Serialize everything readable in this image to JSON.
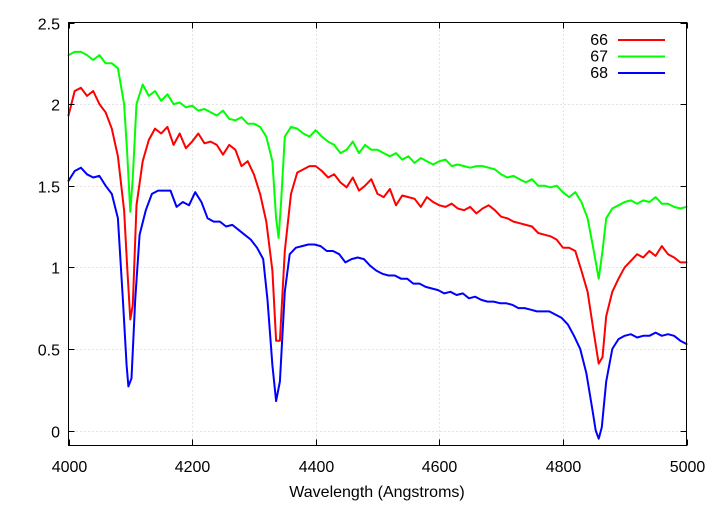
{
  "chart_data": {
    "type": "line",
    "title": "",
    "xlabel": "Wavelength (Angstroms)",
    "ylabel": "",
    "xlim": [
      4000,
      5000
    ],
    "ylim": [
      -0.05,
      2.5
    ],
    "x_ticks": [
      4000,
      4200,
      4400,
      4600,
      4800,
      5000
    ],
    "y_ticks": [
      0,
      0.5,
      1,
      1.5,
      2,
      2.5
    ],
    "x_tick_labels": [
      "4000",
      "4200",
      "4400",
      "4600",
      "4800",
      "5000"
    ],
    "y_tick_labels": [
      "0",
      "0.5",
      "1",
      "1.5",
      "2",
      "2.5"
    ],
    "grid": true,
    "legend_position": "top-right",
    "series": [
      {
        "name": "66",
        "color": "#ff0000",
        "points": [
          [
            4000,
            1.93
          ],
          [
            4010,
            2.08
          ],
          [
            4020,
            2.1
          ],
          [
            4030,
            2.05
          ],
          [
            4040,
            2.08
          ],
          [
            4050,
            2.0
          ],
          [
            4060,
            1.95
          ],
          [
            4070,
            1.85
          ],
          [
            4080,
            1.68
          ],
          [
            4090,
            1.35
          ],
          [
            4095,
            1.0
          ],
          [
            4100,
            0.68
          ],
          [
            4104,
            0.77
          ],
          [
            4110,
            1.38
          ],
          [
            4120,
            1.65
          ],
          [
            4130,
            1.78
          ],
          [
            4140,
            1.85
          ],
          [
            4150,
            1.82
          ],
          [
            4160,
            1.86
          ],
          [
            4170,
            1.75
          ],
          [
            4180,
            1.82
          ],
          [
            4190,
            1.73
          ],
          [
            4200,
            1.77
          ],
          [
            4210,
            1.82
          ],
          [
            4220,
            1.76
          ],
          [
            4230,
            1.77
          ],
          [
            4240,
            1.75
          ],
          [
            4250,
            1.69
          ],
          [
            4260,
            1.75
          ],
          [
            4270,
            1.72
          ],
          [
            4280,
            1.62
          ],
          [
            4290,
            1.65
          ],
          [
            4300,
            1.57
          ],
          [
            4310,
            1.45
          ],
          [
            4320,
            1.28
          ],
          [
            4330,
            0.98
          ],
          [
            4336,
            0.55
          ],
          [
            4342,
            0.55
          ],
          [
            4350,
            1.1
          ],
          [
            4360,
            1.45
          ],
          [
            4370,
            1.58
          ],
          [
            4380,
            1.6
          ],
          [
            4390,
            1.62
          ],
          [
            4400,
            1.62
          ],
          [
            4410,
            1.59
          ],
          [
            4420,
            1.55
          ],
          [
            4430,
            1.57
          ],
          [
            4440,
            1.52
          ],
          [
            4450,
            1.49
          ],
          [
            4460,
            1.55
          ],
          [
            4470,
            1.47
          ],
          [
            4480,
            1.5
          ],
          [
            4490,
            1.54
          ],
          [
            4500,
            1.45
          ],
          [
            4510,
            1.43
          ],
          [
            4520,
            1.48
          ],
          [
            4530,
            1.38
          ],
          [
            4540,
            1.44
          ],
          [
            4550,
            1.43
          ],
          [
            4560,
            1.42
          ],
          [
            4570,
            1.37
          ],
          [
            4580,
            1.43
          ],
          [
            4590,
            1.4
          ],
          [
            4600,
            1.38
          ],
          [
            4610,
            1.37
          ],
          [
            4620,
            1.39
          ],
          [
            4630,
            1.36
          ],
          [
            4640,
            1.35
          ],
          [
            4650,
            1.37
          ],
          [
            4660,
            1.33
          ],
          [
            4670,
            1.36
          ],
          [
            4680,
            1.38
          ],
          [
            4690,
            1.35
          ],
          [
            4700,
            1.31
          ],
          [
            4710,
            1.3
          ],
          [
            4720,
            1.28
          ],
          [
            4730,
            1.27
          ],
          [
            4740,
            1.26
          ],
          [
            4750,
            1.25
          ],
          [
            4760,
            1.21
          ],
          [
            4770,
            1.2
          ],
          [
            4780,
            1.19
          ],
          [
            4790,
            1.17
          ],
          [
            4800,
            1.12
          ],
          [
            4810,
            1.12
          ],
          [
            4820,
            1.1
          ],
          [
            4830,
            0.98
          ],
          [
            4840,
            0.85
          ],
          [
            4850,
            0.6
          ],
          [
            4858,
            0.41
          ],
          [
            4864,
            0.45
          ],
          [
            4870,
            0.7
          ],
          [
            4880,
            0.85
          ],
          [
            4890,
            0.93
          ],
          [
            4900,
            1.0
          ],
          [
            4910,
            1.04
          ],
          [
            4920,
            1.08
          ],
          [
            4930,
            1.06
          ],
          [
            4940,
            1.1
          ],
          [
            4950,
            1.07
          ],
          [
            4960,
            1.13
          ],
          [
            4970,
            1.08
          ],
          [
            4980,
            1.06
          ],
          [
            4990,
            1.03
          ],
          [
            5000,
            1.03
          ]
        ]
      },
      {
        "name": "67",
        "color": "#00ff00",
        "points": [
          [
            4000,
            2.3
          ],
          [
            4010,
            2.32
          ],
          [
            4020,
            2.32
          ],
          [
            4030,
            2.3
          ],
          [
            4040,
            2.27
          ],
          [
            4050,
            2.3
          ],
          [
            4060,
            2.25
          ],
          [
            4070,
            2.25
          ],
          [
            4080,
            2.22
          ],
          [
            4090,
            2.0
          ],
          [
            4095,
            1.7
          ],
          [
            4100,
            1.34
          ],
          [
            4104,
            1.55
          ],
          [
            4110,
            2.0
          ],
          [
            4120,
            2.12
          ],
          [
            4130,
            2.05
          ],
          [
            4140,
            2.08
          ],
          [
            4150,
            2.02
          ],
          [
            4160,
            2.06
          ],
          [
            4170,
            2.0
          ],
          [
            4180,
            2.01
          ],
          [
            4190,
            1.98
          ],
          [
            4200,
            1.99
          ],
          [
            4210,
            1.96
          ],
          [
            4220,
            1.97
          ],
          [
            4230,
            1.95
          ],
          [
            4240,
            1.93
          ],
          [
            4250,
            1.96
          ],
          [
            4260,
            1.91
          ],
          [
            4270,
            1.9
          ],
          [
            4280,
            1.92
          ],
          [
            4290,
            1.88
          ],
          [
            4300,
            1.88
          ],
          [
            4310,
            1.86
          ],
          [
            4320,
            1.8
          ],
          [
            4330,
            1.65
          ],
          [
            4336,
            1.3
          ],
          [
            4340,
            1.18
          ],
          [
            4344,
            1.4
          ],
          [
            4350,
            1.8
          ],
          [
            4360,
            1.86
          ],
          [
            4370,
            1.85
          ],
          [
            4380,
            1.82
          ],
          [
            4390,
            1.8
          ],
          [
            4400,
            1.84
          ],
          [
            4410,
            1.8
          ],
          [
            4420,
            1.77
          ],
          [
            4430,
            1.75
          ],
          [
            4440,
            1.7
          ],
          [
            4450,
            1.72
          ],
          [
            4460,
            1.77
          ],
          [
            4470,
            1.7
          ],
          [
            4480,
            1.75
          ],
          [
            4490,
            1.72
          ],
          [
            4500,
            1.72
          ],
          [
            4510,
            1.7
          ],
          [
            4520,
            1.68
          ],
          [
            4530,
            1.7
          ],
          [
            4540,
            1.66
          ],
          [
            4550,
            1.68
          ],
          [
            4560,
            1.64
          ],
          [
            4570,
            1.67
          ],
          [
            4580,
            1.65
          ],
          [
            4590,
            1.63
          ],
          [
            4600,
            1.65
          ],
          [
            4610,
            1.66
          ],
          [
            4620,
            1.62
          ],
          [
            4630,
            1.63
          ],
          [
            4640,
            1.62
          ],
          [
            4650,
            1.61
          ],
          [
            4660,
            1.62
          ],
          [
            4670,
            1.62
          ],
          [
            4680,
            1.61
          ],
          [
            4690,
            1.6
          ],
          [
            4700,
            1.57
          ],
          [
            4710,
            1.55
          ],
          [
            4720,
            1.56
          ],
          [
            4730,
            1.54
          ],
          [
            4740,
            1.52
          ],
          [
            4750,
            1.54
          ],
          [
            4760,
            1.5
          ],
          [
            4770,
            1.5
          ],
          [
            4780,
            1.49
          ],
          [
            4790,
            1.5
          ],
          [
            4800,
            1.46
          ],
          [
            4810,
            1.43
          ],
          [
            4820,
            1.46
          ],
          [
            4830,
            1.4
          ],
          [
            4840,
            1.3
          ],
          [
            4850,
            1.1
          ],
          [
            4858,
            0.93
          ],
          [
            4864,
            1.1
          ],
          [
            4870,
            1.3
          ],
          [
            4880,
            1.36
          ],
          [
            4890,
            1.38
          ],
          [
            4900,
            1.4
          ],
          [
            4910,
            1.41
          ],
          [
            4920,
            1.39
          ],
          [
            4930,
            1.41
          ],
          [
            4940,
            1.4
          ],
          [
            4950,
            1.43
          ],
          [
            4960,
            1.39
          ],
          [
            4970,
            1.39
          ],
          [
            4980,
            1.37
          ],
          [
            4990,
            1.36
          ],
          [
            5000,
            1.37
          ]
        ]
      },
      {
        "name": "68",
        "color": "#0000ff",
        "points": [
          [
            4000,
            1.53
          ],
          [
            4010,
            1.59
          ],
          [
            4020,
            1.61
          ],
          [
            4030,
            1.57
          ],
          [
            4040,
            1.55
          ],
          [
            4050,
            1.56
          ],
          [
            4060,
            1.5
          ],
          [
            4070,
            1.45
          ],
          [
            4080,
            1.3
          ],
          [
            4088,
            0.8
          ],
          [
            4094,
            0.4
          ],
          [
            4097,
            0.27
          ],
          [
            4102,
            0.32
          ],
          [
            4108,
            0.8
          ],
          [
            4115,
            1.2
          ],
          [
            4125,
            1.35
          ],
          [
            4135,
            1.45
          ],
          [
            4145,
            1.47
          ],
          [
            4155,
            1.47
          ],
          [
            4165,
            1.47
          ],
          [
            4175,
            1.37
          ],
          [
            4185,
            1.4
          ],
          [
            4195,
            1.38
          ],
          [
            4205,
            1.46
          ],
          [
            4215,
            1.4
          ],
          [
            4225,
            1.3
          ],
          [
            4235,
            1.28
          ],
          [
            4245,
            1.28
          ],
          [
            4255,
            1.25
          ],
          [
            4265,
            1.26
          ],
          [
            4275,
            1.23
          ],
          [
            4285,
            1.2
          ],
          [
            4295,
            1.17
          ],
          [
            4305,
            1.12
          ],
          [
            4315,
            1.05
          ],
          [
            4322,
            0.8
          ],
          [
            4330,
            0.4
          ],
          [
            4336,
            0.18
          ],
          [
            4342,
            0.3
          ],
          [
            4350,
            0.85
          ],
          [
            4358,
            1.08
          ],
          [
            4368,
            1.12
          ],
          [
            4378,
            1.13
          ],
          [
            4388,
            1.14
          ],
          [
            4398,
            1.14
          ],
          [
            4408,
            1.13
          ],
          [
            4418,
            1.1
          ],
          [
            4428,
            1.1
          ],
          [
            4438,
            1.08
          ],
          [
            4448,
            1.03
          ],
          [
            4458,
            1.05
          ],
          [
            4468,
            1.06
          ],
          [
            4478,
            1.05
          ],
          [
            4488,
            1.01
          ],
          [
            4498,
            0.98
          ],
          [
            4508,
            0.96
          ],
          [
            4518,
            0.95
          ],
          [
            4528,
            0.95
          ],
          [
            4538,
            0.93
          ],
          [
            4548,
            0.93
          ],
          [
            4558,
            0.9
          ],
          [
            4568,
            0.9
          ],
          [
            4578,
            0.88
          ],
          [
            4588,
            0.87
          ],
          [
            4598,
            0.86
          ],
          [
            4608,
            0.84
          ],
          [
            4618,
            0.85
          ],
          [
            4628,
            0.83
          ],
          [
            4638,
            0.84
          ],
          [
            4648,
            0.81
          ],
          [
            4658,
            0.82
          ],
          [
            4668,
            0.8
          ],
          [
            4678,
            0.79
          ],
          [
            4688,
            0.79
          ],
          [
            4698,
            0.78
          ],
          [
            4708,
            0.78
          ],
          [
            4718,
            0.77
          ],
          [
            4728,
            0.75
          ],
          [
            4738,
            0.75
          ],
          [
            4748,
            0.74
          ],
          [
            4758,
            0.73
          ],
          [
            4768,
            0.73
          ],
          [
            4778,
            0.73
          ],
          [
            4788,
            0.71
          ],
          [
            4798,
            0.69
          ],
          [
            4808,
            0.65
          ],
          [
            4818,
            0.58
          ],
          [
            4828,
            0.5
          ],
          [
            4838,
            0.35
          ],
          [
            4848,
            0.12
          ],
          [
            4853,
            0.0
          ],
          [
            4858,
            -0.05
          ],
          [
            4863,
            0.02
          ],
          [
            4870,
            0.3
          ],
          [
            4880,
            0.5
          ],
          [
            4890,
            0.56
          ],
          [
            4900,
            0.58
          ],
          [
            4910,
            0.59
          ],
          [
            4920,
            0.57
          ],
          [
            4930,
            0.58
          ],
          [
            4940,
            0.58
          ],
          [
            4950,
            0.6
          ],
          [
            4960,
            0.58
          ],
          [
            4970,
            0.59
          ],
          [
            4980,
            0.58
          ],
          [
            4990,
            0.55
          ],
          [
            5000,
            0.53
          ]
        ]
      }
    ]
  }
}
